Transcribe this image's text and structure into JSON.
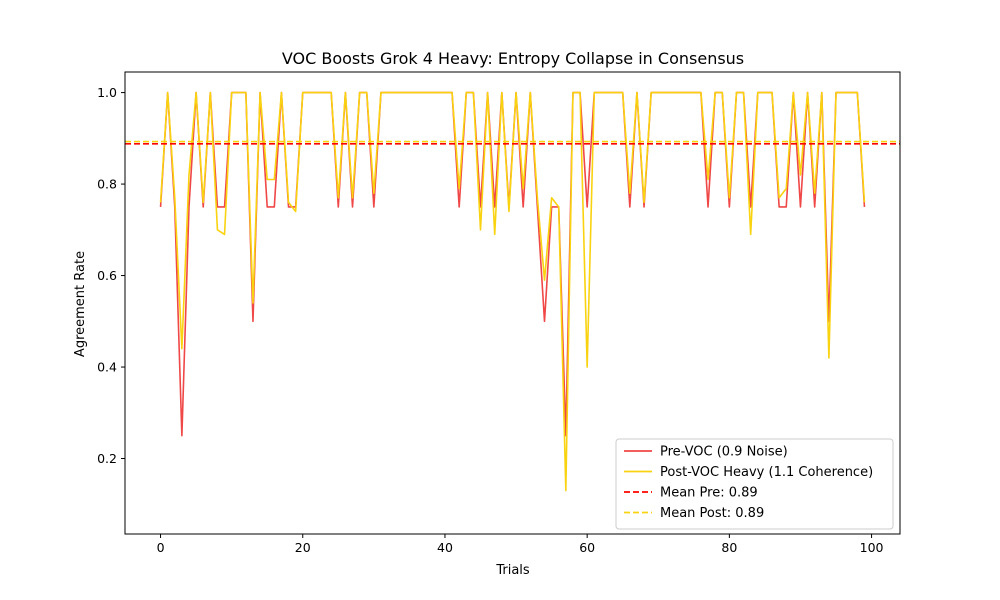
{
  "chart_data": {
    "type": "line",
    "title": "VOC Boosts Grok 4 Heavy: Entropy Collapse in Consensus",
    "xlabel": "Trials",
    "ylabel": "Agreement Rate",
    "xlim": [
      -5,
      104
    ],
    "ylim": [
      0.035,
      1.045
    ],
    "x_ticks": [
      0,
      20,
      40,
      60,
      80,
      100
    ],
    "y_ticks": [
      0.2,
      0.4,
      0.6,
      0.8,
      1.0
    ],
    "x_tick_labels": [
      "0",
      "20",
      "40",
      "60",
      "80",
      "100"
    ],
    "y_tick_labels": [
      "0.2",
      "0.4",
      "0.6",
      "0.8",
      "1.0"
    ],
    "grid": false,
    "legend_position": "bottom-right",
    "series": [
      {
        "name": "Pre-VOC (0.9 Noise)",
        "color": "#f04747",
        "x": [
          0,
          1,
          2,
          3,
          4,
          5,
          6,
          7,
          8,
          9,
          10,
          11,
          12,
          13,
          14,
          15,
          16,
          17,
          18,
          19,
          20,
          21,
          22,
          23,
          24,
          25,
          26,
          27,
          28,
          29,
          30,
          31,
          32,
          33,
          34,
          35,
          36,
          37,
          38,
          39,
          40,
          41,
          42,
          43,
          44,
          45,
          46,
          47,
          48,
          49,
          50,
          51,
          52,
          53,
          54,
          55,
          56,
          57,
          58,
          59,
          60,
          61,
          62,
          63,
          64,
          65,
          66,
          67,
          68,
          69,
          70,
          71,
          72,
          73,
          74,
          75,
          76,
          77,
          78,
          79,
          80,
          81,
          82,
          83,
          84,
          85,
          86,
          87,
          88,
          89,
          90,
          91,
          92,
          93,
          94,
          95,
          96,
          97,
          98,
          99
        ],
        "y": [
          0.75,
          1.0,
          0.75,
          0.25,
          0.75,
          1.0,
          0.75,
          1.0,
          0.75,
          0.75,
          1.0,
          1.0,
          1.0,
          0.5,
          1.0,
          0.75,
          0.75,
          1.0,
          0.75,
          0.75,
          1.0,
          1.0,
          1.0,
          1.0,
          1.0,
          0.75,
          1.0,
          0.75,
          1.0,
          1.0,
          0.75,
          1.0,
          1.0,
          1.0,
          1.0,
          1.0,
          1.0,
          1.0,
          1.0,
          1.0,
          1.0,
          1.0,
          0.75,
          1.0,
          1.0,
          0.75,
          1.0,
          0.75,
          1.0,
          0.75,
          1.0,
          0.75,
          1.0,
          0.75,
          0.5,
          0.75,
          0.75,
          0.25,
          1.0,
          1.0,
          0.75,
          1.0,
          1.0,
          1.0,
          1.0,
          1.0,
          0.75,
          1.0,
          0.75,
          1.0,
          1.0,
          1.0,
          1.0,
          1.0,
          1.0,
          1.0,
          1.0,
          0.75,
          1.0,
          1.0,
          0.75,
          1.0,
          1.0,
          0.75,
          1.0,
          1.0,
          1.0,
          0.75,
          0.75,
          1.0,
          0.75,
          1.0,
          0.75,
          1.0,
          0.5,
          1.0,
          1.0,
          1.0,
          1.0,
          0.75
        ]
      },
      {
        "name": "Post-VOC Heavy (1.1 Coherence)",
        "color": "#f9d210",
        "x": [
          0,
          1,
          2,
          3,
          4,
          5,
          6,
          7,
          8,
          9,
          10,
          11,
          12,
          13,
          14,
          15,
          16,
          17,
          18,
          19,
          20,
          21,
          22,
          23,
          24,
          25,
          26,
          27,
          28,
          29,
          30,
          31,
          32,
          33,
          34,
          35,
          36,
          37,
          38,
          39,
          40,
          41,
          42,
          43,
          44,
          45,
          46,
          47,
          48,
          49,
          50,
          51,
          52,
          53,
          54,
          55,
          56,
          57,
          58,
          59,
          60,
          61,
          62,
          63,
          64,
          65,
          66,
          67,
          68,
          69,
          70,
          71,
          72,
          73,
          74,
          75,
          76,
          77,
          78,
          79,
          80,
          81,
          82,
          83,
          84,
          85,
          86,
          87,
          88,
          89,
          90,
          91,
          92,
          93,
          94,
          95,
          96,
          97,
          98,
          99
        ],
        "y": [
          0.76,
          1.0,
          0.77,
          0.44,
          0.82,
          1.0,
          0.76,
          1.0,
          0.7,
          0.69,
          1.0,
          1.0,
          1.0,
          0.54,
          1.0,
          0.81,
          0.81,
          1.0,
          0.76,
          0.74,
          1.0,
          1.0,
          1.0,
          1.0,
          1.0,
          0.77,
          1.0,
          0.77,
          1.0,
          1.0,
          0.78,
          1.0,
          1.0,
          1.0,
          1.0,
          1.0,
          1.0,
          1.0,
          1.0,
          1.0,
          1.0,
          1.0,
          0.79,
          1.0,
          1.0,
          0.7,
          1.0,
          0.69,
          1.0,
          0.74,
          1.0,
          0.79,
          1.0,
          0.77,
          0.59,
          0.77,
          0.75,
          0.13,
          1.0,
          1.0,
          0.4,
          1.0,
          1.0,
          1.0,
          1.0,
          1.0,
          0.78,
          1.0,
          0.76,
          1.0,
          1.0,
          1.0,
          1.0,
          1.0,
          1.0,
          1.0,
          1.0,
          0.81,
          1.0,
          1.0,
          0.77,
          1.0,
          1.0,
          0.69,
          1.0,
          1.0,
          1.0,
          0.77,
          0.79,
          1.0,
          0.82,
          1.0,
          0.78,
          1.0,
          0.42,
          1.0,
          1.0,
          1.0,
          1.0,
          0.76
        ]
      }
    ],
    "reference_lines": [
      {
        "name": "Mean Pre: 0.89",
        "value": 0.888,
        "color": "#ff0000",
        "style": "dashed"
      },
      {
        "name": "Mean Post: 0.89",
        "value": 0.893,
        "color": "#f9d210",
        "style": "dashed"
      }
    ]
  }
}
